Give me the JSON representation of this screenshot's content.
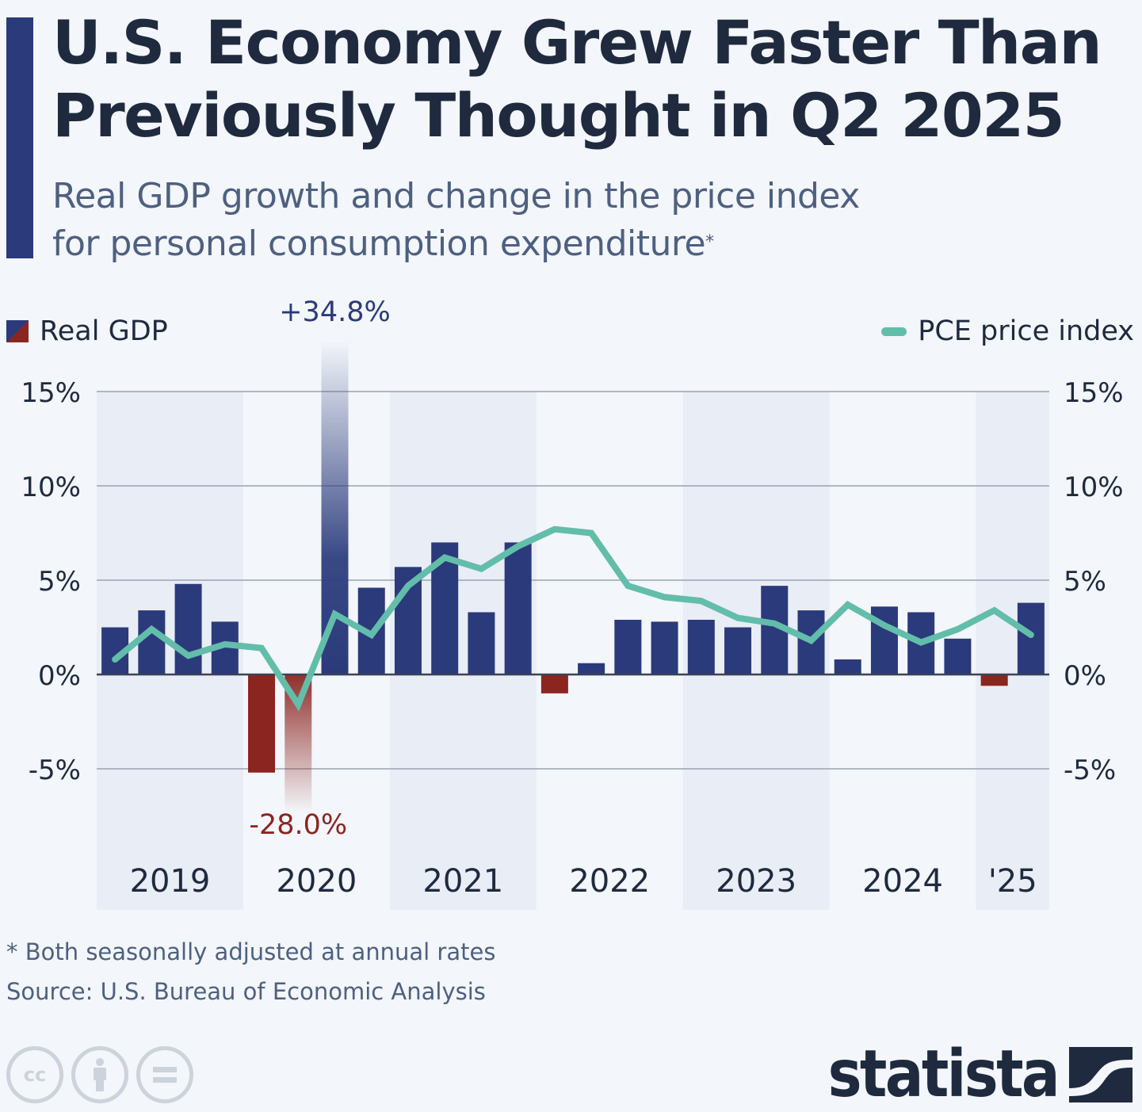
{
  "header": {
    "title_line1": "U.S. Economy Grew Faster Than",
    "title_line2": "Previously Thought in Q2 2025",
    "subtitle_line1": "Real GDP growth and change in the price index",
    "subtitle_line2": "for personal consumption expenditure",
    "subtitle_marker": "*"
  },
  "legend": {
    "left_label": "Real GDP",
    "right_label": "PCE price index"
  },
  "colors": {
    "gdp_positive": "#2b3a7a",
    "gdp_negative": "#8b2520",
    "pce_line": "#62bdaa",
    "band": "#e9edf6",
    "gridline": "#9aa3b2",
    "zero_line": "#3a4356",
    "outlier_label_positive": "#2b3a7a",
    "outlier_label_negative": "#8b2520"
  },
  "chart_data": {
    "type": "bar",
    "title": "U.S. Economy Grew Faster Than Previously Thought in Q2 2025",
    "subtitle": "Real GDP growth and change in the price index for personal consumption expenditure*",
    "xlabel": "",
    "ylabel": "",
    "ylim": [
      -5,
      15
    ],
    "y_ticks": [
      15,
      10,
      5,
      0,
      -5
    ],
    "y_tick_labels": [
      "15%",
      "10%",
      "5%",
      "0%",
      "-5%"
    ],
    "y_axis_sides": "left-and-right",
    "grid": true,
    "legend_placement": "top",
    "year_groups": [
      {
        "label": "2019",
        "quarters": 4
      },
      {
        "label": "2020",
        "quarters": 4
      },
      {
        "label": "2021",
        "quarters": 4
      },
      {
        "label": "2022",
        "quarters": 4
      },
      {
        "label": "2023",
        "quarters": 4
      },
      {
        "label": "2024",
        "quarters": 4
      },
      {
        "label": "'25",
        "quarters": 2
      }
    ],
    "categories": [
      "2019 Q1",
      "2019 Q2",
      "2019 Q3",
      "2019 Q4",
      "2020 Q1",
      "2020 Q2",
      "2020 Q3",
      "2020 Q4",
      "2021 Q1",
      "2021 Q2",
      "2021 Q3",
      "2021 Q4",
      "2022 Q1",
      "2022 Q2",
      "2022 Q3",
      "2022 Q4",
      "2023 Q1",
      "2023 Q2",
      "2023 Q3",
      "2023 Q4",
      "2024 Q1",
      "2024 Q2",
      "2024 Q3",
      "2024 Q4",
      "2025 Q1",
      "2025 Q2"
    ],
    "series": [
      {
        "name": "Real GDP",
        "type": "bar",
        "values": [
          2.5,
          3.4,
          4.8,
          2.8,
          -5.2,
          -28.0,
          34.8,
          4.6,
          5.7,
          7.0,
          3.3,
          7.0,
          -1.0,
          0.6,
          2.9,
          2.8,
          2.9,
          2.5,
          4.7,
          3.4,
          0.8,
          3.6,
          3.3,
          1.9,
          -0.6,
          3.8
        ]
      },
      {
        "name": "PCE price index",
        "type": "line",
        "values": [
          0.8,
          2.4,
          1.0,
          1.6,
          1.4,
          -1.6,
          3.2,
          2.1,
          4.7,
          6.2,
          5.6,
          6.8,
          7.7,
          7.5,
          4.7,
          4.1,
          3.9,
          3.0,
          2.7,
          1.8,
          3.7,
          2.6,
          1.7,
          2.4,
          3.4,
          2.1
        ]
      }
    ],
    "annotations": [
      {
        "category": "2020 Q3",
        "text": "+34.8%"
      },
      {
        "category": "2020 Q2",
        "text": "-28.0%"
      }
    ]
  },
  "footer": {
    "footnote": "* Both seasonally adjusted at annual rates",
    "source": "Source: U.S. Bureau of Economic Analysis",
    "cc_labels": [
      "cc",
      "by",
      "nd"
    ],
    "brand": "statista"
  }
}
